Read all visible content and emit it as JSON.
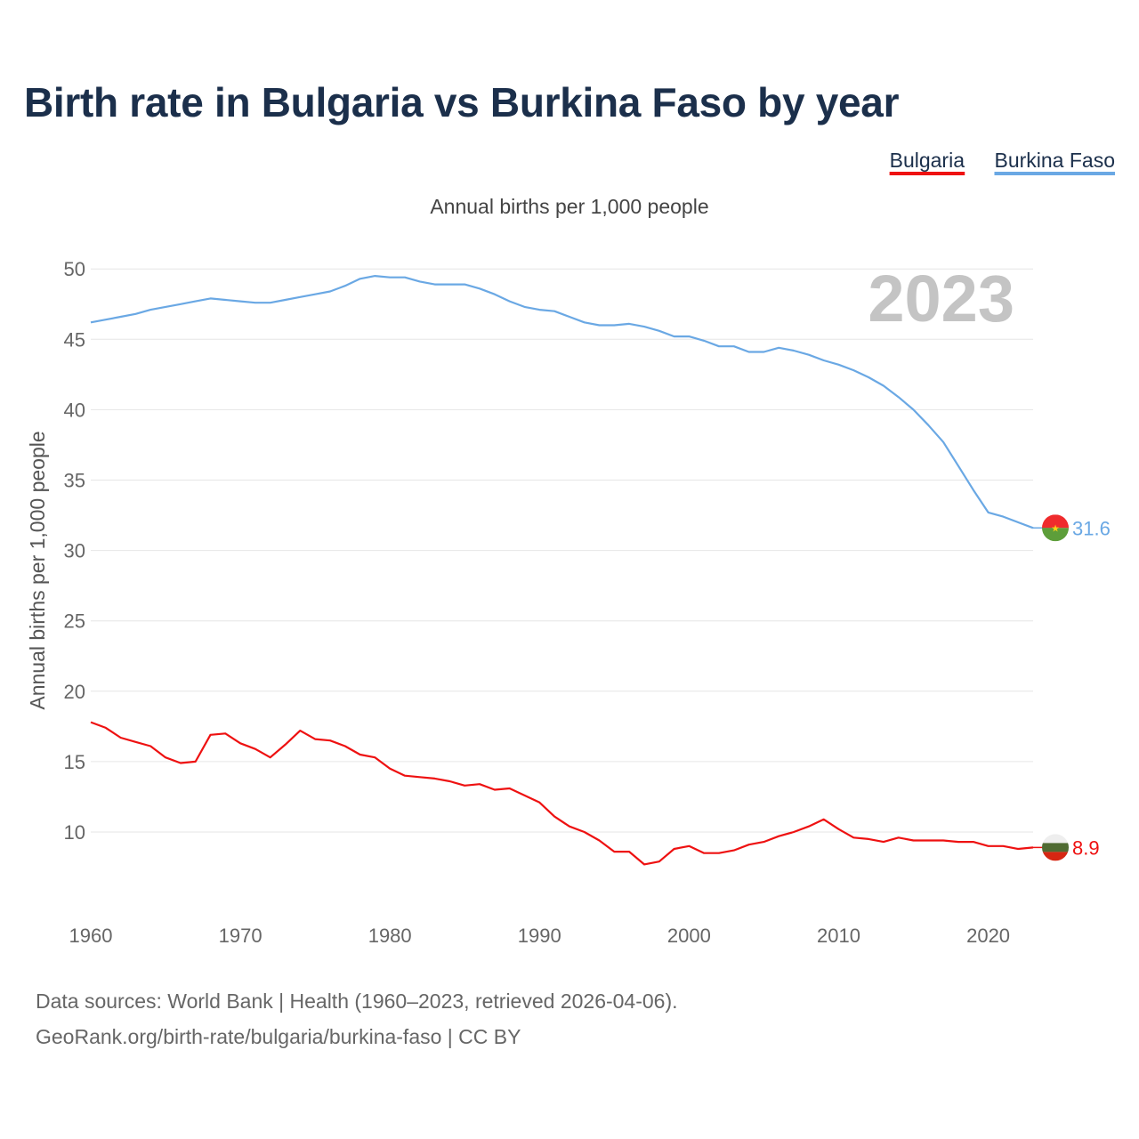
{
  "title": "Birth rate in Bulgaria vs Burkina Faso by year",
  "legend": [
    {
      "label": "Bulgaria",
      "color": "#ee1111"
    },
    {
      "label": "Burkina Faso",
      "color": "#6aa8e4"
    }
  ],
  "current_year": "2023",
  "footer": {
    "line1": "Data sources: World Bank | Health (1960–2023, retrieved 2026-04-06).",
    "line2": "GeoRank.org/birth-rate/bulgaria/burkina-faso | CC BY"
  },
  "chart_data": {
    "type": "line",
    "title": "Birth rate in Bulgaria vs Burkina Faso by year",
    "subtitle": "Annual births per 1,000 people",
    "ylabel": "Annual births per 1,000 people",
    "xlabel": "",
    "xlim": [
      1960,
      2023
    ],
    "ylim": [
      5,
      51
    ],
    "y_ticks": [
      10,
      15,
      20,
      25,
      30,
      35,
      40,
      45,
      50
    ],
    "x_ticks": [
      1960,
      1970,
      1980,
      1990,
      2000,
      2010,
      2020
    ],
    "grid": true,
    "legend_position": "top-right",
    "x": [
      1960,
      1961,
      1962,
      1963,
      1964,
      1965,
      1966,
      1967,
      1968,
      1969,
      1970,
      1971,
      1972,
      1973,
      1974,
      1975,
      1976,
      1977,
      1978,
      1979,
      1980,
      1981,
      1982,
      1983,
      1984,
      1985,
      1986,
      1987,
      1988,
      1989,
      1990,
      1991,
      1992,
      1993,
      1994,
      1995,
      1996,
      1997,
      1998,
      1999,
      2000,
      2001,
      2002,
      2003,
      2004,
      2005,
      2006,
      2007,
      2008,
      2009,
      2010,
      2011,
      2012,
      2013,
      2014,
      2015,
      2016,
      2017,
      2018,
      2019,
      2020,
      2021,
      2022,
      2023
    ],
    "series": [
      {
        "name": "Bulgaria",
        "color": "#ee1111",
        "end_label": "8.9",
        "values": [
          17.8,
          17.4,
          16.7,
          16.4,
          16.1,
          15.3,
          14.9,
          15.0,
          16.9,
          17.0,
          16.3,
          15.9,
          15.3,
          16.2,
          17.2,
          16.6,
          16.5,
          16.1,
          15.5,
          15.3,
          14.5,
          14.0,
          13.9,
          13.8,
          13.6,
          13.3,
          13.4,
          13.0,
          13.1,
          12.6,
          12.1,
          11.1,
          10.4,
          10.0,
          9.4,
          8.6,
          8.6,
          7.7,
          7.9,
          8.8,
          9.0,
          8.5,
          8.5,
          8.7,
          9.1,
          9.3,
          9.7,
          10.0,
          10.4,
          10.9,
          10.2,
          9.6,
          9.5,
          9.3,
          9.6,
          9.4,
          9.4,
          9.4,
          9.3,
          9.3,
          9.0,
          9.0,
          8.8,
          8.9
        ]
      },
      {
        "name": "Burkina Faso",
        "color": "#6aa8e4",
        "end_label": "31.6",
        "values": [
          46.2,
          46.4,
          46.6,
          46.8,
          47.1,
          47.3,
          47.5,
          47.7,
          47.9,
          47.8,
          47.7,
          47.6,
          47.6,
          47.8,
          48.0,
          48.2,
          48.4,
          48.8,
          49.3,
          49.5,
          49.4,
          49.4,
          49.1,
          48.9,
          48.9,
          48.9,
          48.6,
          48.2,
          47.7,
          47.3,
          47.1,
          47.0,
          46.6,
          46.2,
          46.0,
          46.0,
          46.1,
          45.9,
          45.6,
          45.2,
          45.2,
          44.9,
          44.5,
          44.5,
          44.1,
          44.1,
          44.4,
          44.2,
          43.9,
          43.5,
          43.2,
          42.8,
          42.3,
          41.7,
          40.9,
          40.0,
          38.9,
          37.7,
          36.0,
          34.3,
          32.7,
          32.4,
          32.0,
          31.6
        ]
      }
    ]
  }
}
